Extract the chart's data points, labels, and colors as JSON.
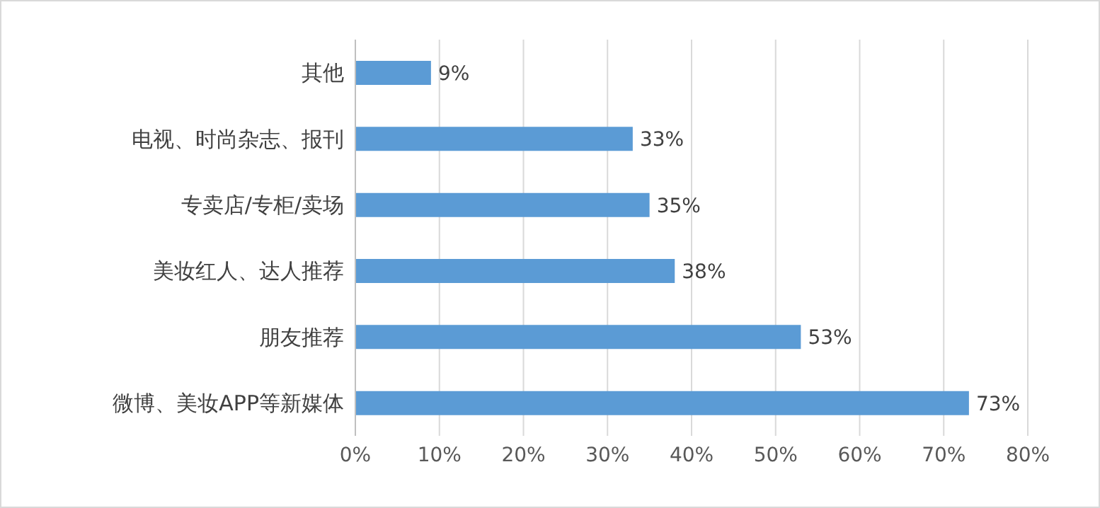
{
  "chart_data": {
    "type": "bar",
    "orientation": "horizontal",
    "categories": [
      "其他",
      "电视、时尚杂志、报刊",
      "专卖店/专柜/卖场",
      "美妆红人、达人推荐",
      "朋友推荐",
      "微博、美妆APP等新媒体"
    ],
    "values": [
      9,
      33,
      35,
      38,
      53,
      73
    ],
    "value_labels": [
      "9%",
      "33%",
      "35%",
      "38%",
      "53%",
      "73%"
    ],
    "color": "#5b9bd5",
    "xlim": [
      0,
      80
    ],
    "xticks": [
      {
        "value": 0,
        "label": "0%"
      },
      {
        "value": 10,
        "label": "10%"
      },
      {
        "value": 20,
        "label": "20%"
      },
      {
        "value": 30,
        "label": "30%"
      },
      {
        "value": 40,
        "label": "40%"
      },
      {
        "value": 50,
        "label": "50%"
      },
      {
        "value": 60,
        "label": "60%"
      },
      {
        "value": 70,
        "label": "70%"
      },
      {
        "value": 80,
        "label": "80%"
      }
    ],
    "grid": "x"
  }
}
